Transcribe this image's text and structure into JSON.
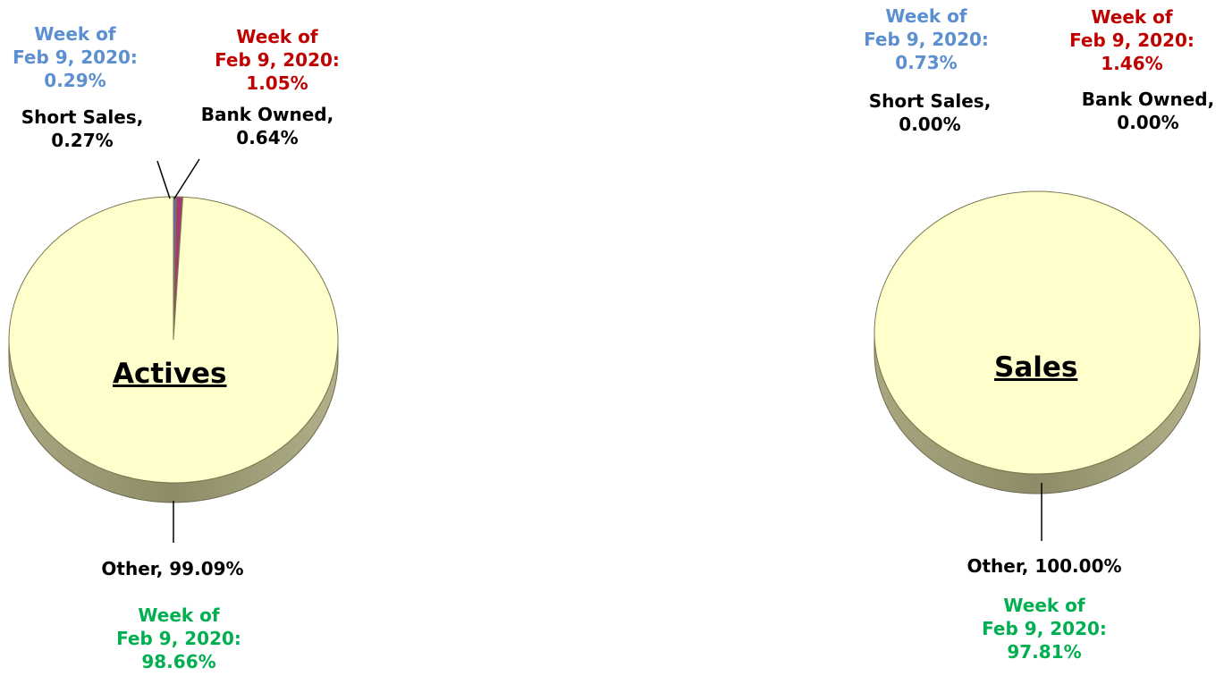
{
  "chart_data": [
    {
      "type": "pie",
      "title": "Actives",
      "slices": [
        {
          "label": "Short Sales",
          "value": 0.27,
          "value_label": "0.27%",
          "color": "#6a63b8"
        },
        {
          "label": "Bank Owned",
          "value": 0.64,
          "value_label": "0.64%",
          "color": "#a23a6e"
        },
        {
          "label": "Other",
          "value": 99.09,
          "value_label": "99.09%",
          "color": "#ffffcc"
        }
      ],
      "comparisons": [
        {
          "for": "Short Sales",
          "line1": "Week of",
          "line2": "Feb 9, 2020:",
          "line3": "0.29%",
          "color": "#5b8fd0"
        },
        {
          "for": "Bank Owned",
          "line1": "Week of",
          "line2": "Feb 9, 2020:",
          "line3": "1.05%",
          "color": "#c00000"
        },
        {
          "for": "Other",
          "line1": "Week of",
          "line2": "Feb 9, 2020:",
          "line3": "98.66%",
          "color": "#00b050"
        }
      ]
    },
    {
      "type": "pie",
      "title": "Sales",
      "slices": [
        {
          "label": "Short Sales",
          "value": 0.0,
          "value_label": "0.00%",
          "color": "#6a63b8"
        },
        {
          "label": "Bank Owned",
          "value": 0.0,
          "value_label": "0.00%",
          "color": "#a23a6e"
        },
        {
          "label": "Other",
          "value": 100.0,
          "value_label": "100.00%",
          "color": "#ffffcc"
        }
      ],
      "comparisons": [
        {
          "for": "Short Sales",
          "line1": "Week of",
          "line2": "Feb 9, 2020:",
          "line3": "0.73%",
          "color": "#5b8fd0"
        },
        {
          "for": "Bank Owned",
          "line1": "Week of",
          "line2": "Feb 9, 2020:",
          "line3": "1.46%",
          "color": "#c00000"
        },
        {
          "for": "Other",
          "line1": "Week of",
          "line2": "Feb 9, 2020:",
          "line3": "97.81%",
          "color": "#00b050"
        }
      ]
    }
  ]
}
